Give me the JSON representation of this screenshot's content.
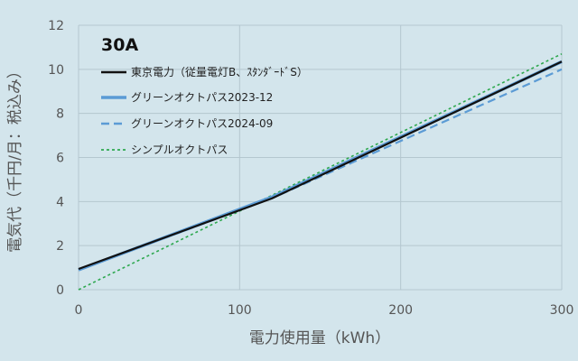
{
  "chart_data": {
    "type": "line",
    "title": "30A",
    "xlabel": "電力使用量（kWh）",
    "ylabel": "電気代（千円/月：税込み）",
    "xlim": [
      0,
      300
    ],
    "ylim": [
      0,
      12
    ],
    "xticks": [
      0,
      100,
      200,
      300
    ],
    "yticks": [
      0,
      2,
      4,
      6,
      8,
      10,
      12
    ],
    "xtick_labels": [
      "0",
      "100",
      "200",
      "300"
    ],
    "ytick_labels": [
      "0",
      "2",
      "4",
      "6",
      "8",
      "10",
      "12"
    ],
    "grid": true,
    "legend_position": "top-left",
    "series": [
      {
        "name": "東京電力（従量電灯B、ｽﾀﾝﾀﾞｰﾄﾞS）",
        "color": "#111111",
        "style": "solid",
        "x": [
          0,
          120,
          300
        ],
        "y": [
          0.94,
          4.14,
          10.35
        ]
      },
      {
        "name": "グリーンオクトパス2023-12",
        "color": "#5b9bd5",
        "style": "solid",
        "x": [
          0,
          120,
          300
        ],
        "y": [
          0.9,
          4.2,
          10.35
        ]
      },
      {
        "name": "グリーンオクトパス2024-09",
        "color": "#5b9bd5",
        "style": "dashed",
        "x": [
          0,
          120,
          300
        ],
        "y": [
          0.9,
          4.15,
          10.0
        ]
      },
      {
        "name": "シンプルオクトパス",
        "color": "#2ea84f",
        "style": "dotted",
        "x": [
          0,
          300
        ],
        "y": [
          0.0,
          10.7
        ]
      }
    ]
  }
}
